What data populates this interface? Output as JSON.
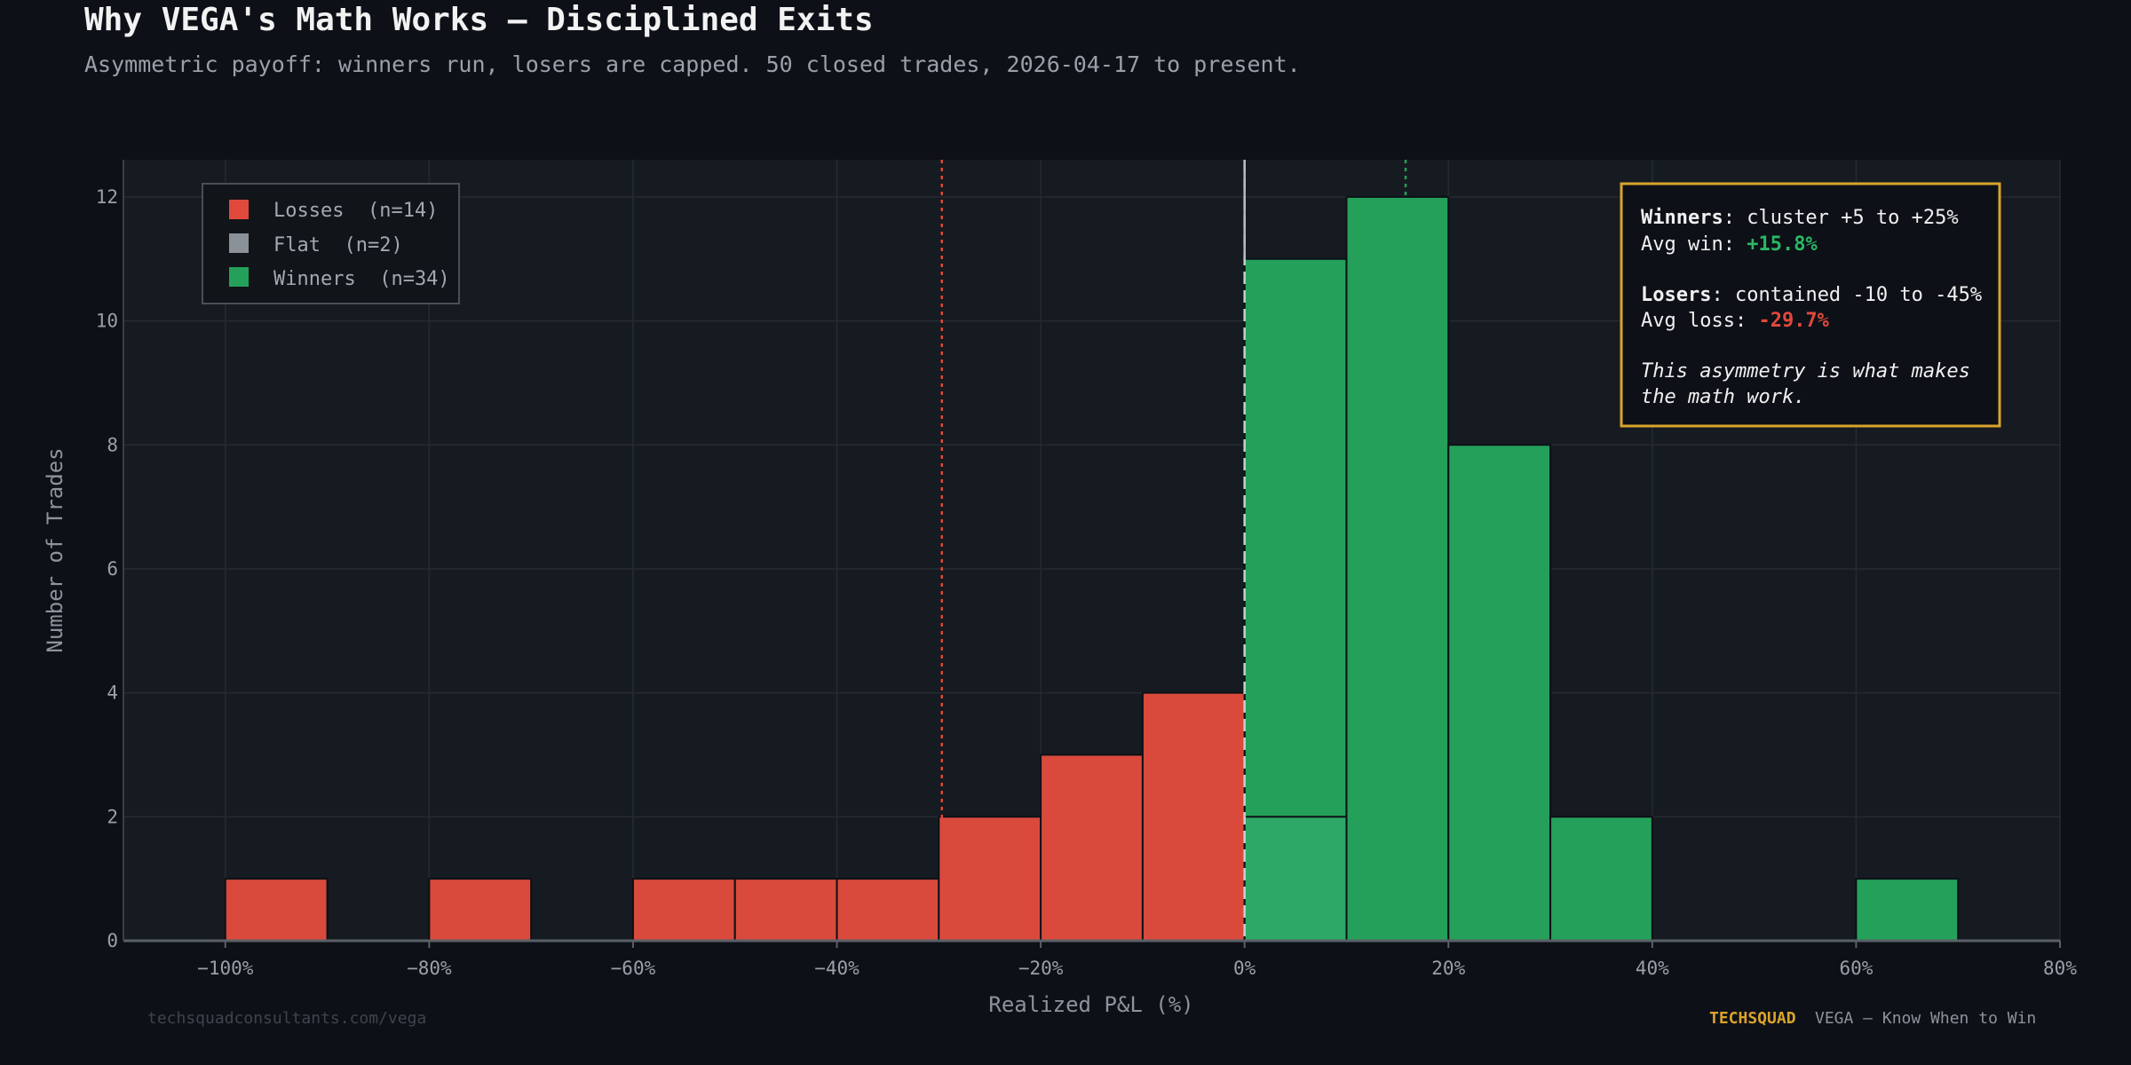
{
  "header": {
    "title": "Why VEGA's Math Works — Disciplined Exits",
    "subtitle": "Asymmetric payoff: winners run, losers are capped. 50 closed trades, 2026-04-17 to present."
  },
  "colors": {
    "background": "#0d1017",
    "plot_background": "#161a21",
    "loss": "#d94a3d",
    "flat": "#8a9199",
    "win": "#24a05a",
    "win_light": "#2ea866",
    "annotation_border": "#d9a42c",
    "brand": "#d9a42c"
  },
  "chart_data": {
    "type": "bar",
    "xlabel": "Realized P&L (%)",
    "ylabel": "Number of Trades",
    "xlim": [
      -110,
      80
    ],
    "ylim": [
      0,
      12.6
    ],
    "xticks": [
      -100,
      -80,
      -60,
      -40,
      -20,
      0,
      20,
      40,
      60,
      80
    ],
    "xtick_labels": [
      "−100%",
      "−80%",
      "−60%",
      "−40%",
      "−20%",
      "0%",
      "20%",
      "40%",
      "60%",
      "80%"
    ],
    "yticks": [
      0,
      2,
      4,
      6,
      8,
      10,
      12
    ],
    "ytick_labels": [
      "0",
      "2",
      "4",
      "6",
      "8",
      "10",
      "12"
    ],
    "bin_width": 10,
    "grid": true,
    "series": [
      {
        "name": "Losses",
        "color": "#d94a3d",
        "bins": [
          {
            "x0": -100,
            "x1": -90,
            "count": 1
          },
          {
            "x0": -80,
            "x1": -70,
            "count": 1
          },
          {
            "x0": -60,
            "x1": -50,
            "count": 1
          },
          {
            "x0": -50,
            "x1": -40,
            "count": 1
          },
          {
            "x0": -40,
            "x1": -30,
            "count": 1
          },
          {
            "x0": -30,
            "x1": -20,
            "count": 2
          },
          {
            "x0": -20,
            "x1": -10,
            "count": 3
          },
          {
            "x0": -10,
            "x1": 0,
            "count": 4
          }
        ]
      },
      {
        "name": "Flat",
        "color": "#2ea866",
        "bins": [
          {
            "x0": 0,
            "x1": 10,
            "count": 2
          }
        ]
      },
      {
        "name": "Winners",
        "color": "#24a05a",
        "bins": [
          {
            "x0": 0,
            "x1": 10,
            "count": 11
          },
          {
            "x0": 10,
            "x1": 20,
            "count": 12
          },
          {
            "x0": 20,
            "x1": 30,
            "count": 8
          },
          {
            "x0": 30,
            "x1": 40,
            "count": 2
          },
          {
            "x0": 60,
            "x1": 70,
            "count": 1
          }
        ]
      }
    ],
    "reference_lines": [
      {
        "x": -29.7,
        "color": "#d94a3d",
        "style": "dotted"
      },
      {
        "x": 0,
        "color": "#c9ccd1",
        "style": "dashed"
      },
      {
        "x": 15.8,
        "color": "#24a05a",
        "style": "dotted"
      }
    ],
    "legend": {
      "position": "top-left",
      "items": [
        {
          "label": "Losses  (n=14)",
          "color": "#e0493c"
        },
        {
          "label": "Flat  (n=2)",
          "color": "#8a9199"
        },
        {
          "label": "Winners  (n=34)",
          "color": "#24a05a"
        }
      ]
    },
    "annotation": {
      "position": "top-right",
      "win_bold": "Winners",
      "win_text": ": cluster +5 to +25%",
      "avg_win_label": "Avg win: ",
      "avg_win_value": "+15.8%",
      "loss_bold": "Losers",
      "loss_text": ": contained -10 to -45%",
      "avg_loss_label": "Avg loss: ",
      "avg_loss_value": "-29.7%",
      "note_line1": "This asymmetry is what makes",
      "note_line2": "the math work."
    }
  },
  "footer": {
    "url": "techsquadconsultants.com/vega",
    "brand": "TECHSQUAD",
    "tagline": "VEGA — Know When to Win"
  }
}
